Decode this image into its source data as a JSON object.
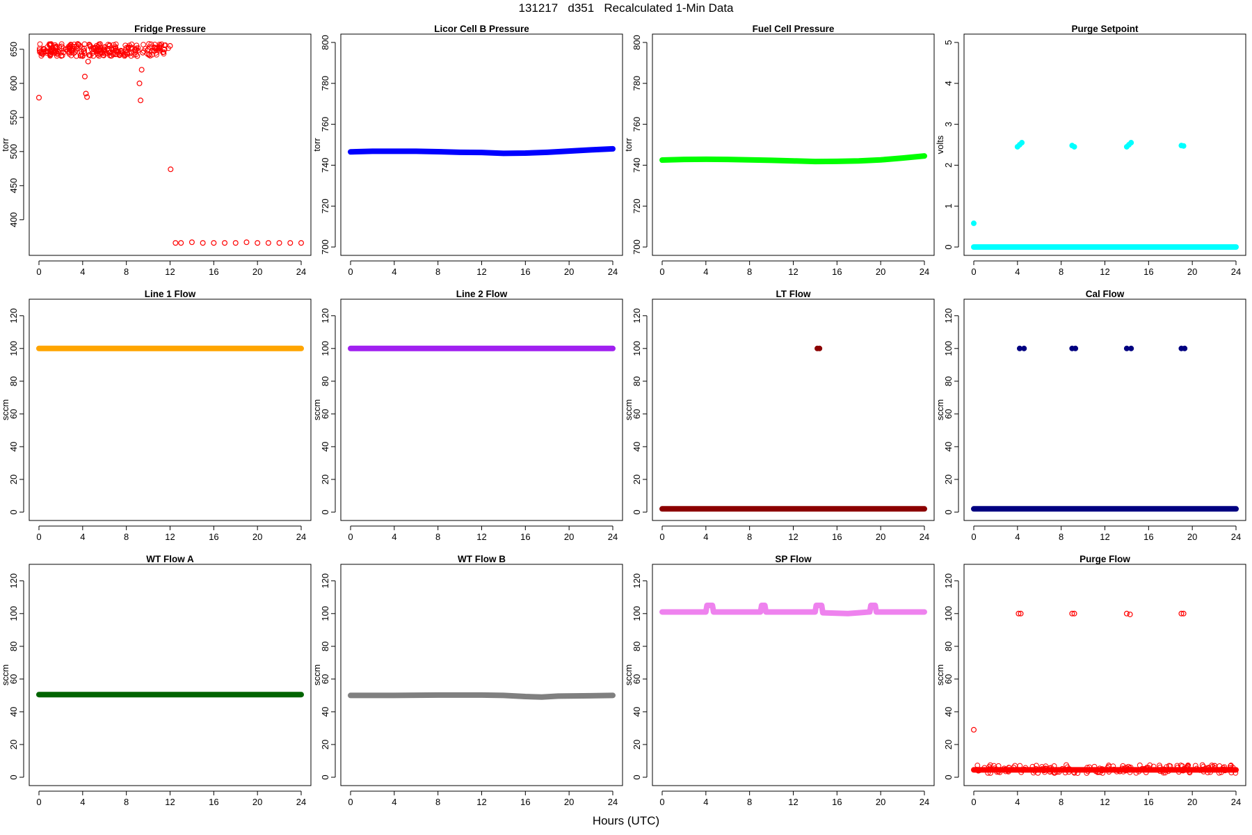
{
  "header": {
    "title": "131217   d351   Recalculated 1-Min Data",
    "xlabel": "Hours (UTC)"
  },
  "chart_data": [
    {
      "type": "scatter",
      "title": "Fridge Pressure",
      "ylabel": "torr",
      "xlim": [
        0,
        24
      ],
      "ylim": [
        360,
        660
      ],
      "xticks": [
        0,
        4,
        8,
        12,
        16,
        20,
        24
      ],
      "yticks": [
        400,
        450,
        500,
        550,
        600,
        650
      ],
      "color": "#ff0000",
      "marker": "open",
      "series": [
        {
          "x": [
            0,
            0.5,
            1,
            1.5,
            2,
            2.5,
            3,
            3.5,
            4,
            4.2,
            4.3,
            4.4,
            4.5,
            5,
            5.5,
            6,
            6.5,
            7,
            7.5,
            8,
            8.5,
            9,
            9.2,
            9.3,
            9.4,
            9.5,
            10,
            10.5,
            11,
            11.5,
            12,
            12.05,
            12.5,
            13,
            14,
            15,
            16,
            17,
            18,
            19,
            20,
            21,
            22,
            23,
            24
          ],
          "y": [
            579,
            650,
            648,
            652,
            645,
            650,
            648,
            651,
            640,
            610,
            585,
            580,
            632,
            652,
            648,
            650,
            645,
            651,
            648,
            652,
            650,
            640,
            600,
            575,
            620,
            645,
            650,
            648,
            652,
            650,
            655,
            474,
            366,
            366,
            367,
            366,
            366,
            366,
            366,
            367,
            366,
            366,
            366,
            366,
            366
          ]
        }
      ]
    },
    {
      "type": "line",
      "title": "Licor Cell B Pressure",
      "ylabel": "torr",
      "xlim": [
        0,
        24
      ],
      "ylim": [
        700,
        800
      ],
      "xticks": [
        0,
        4,
        8,
        12,
        16,
        20,
        24
      ],
      "yticks": [
        700,
        720,
        740,
        760,
        780,
        800
      ],
      "color": "#0000ff",
      "marker": "thick",
      "series": [
        {
          "x": [
            0,
            2,
            4,
            6,
            8,
            10,
            12,
            14,
            16,
            18,
            20,
            22,
            24
          ],
          "y": [
            746.5,
            746.8,
            746.8,
            746.8,
            746.6,
            746.3,
            746.2,
            745.8,
            745.9,
            746.3,
            746.9,
            747.5,
            748
          ]
        }
      ]
    },
    {
      "type": "line",
      "title": "Fuel Cell Pressure",
      "ylabel": "torr",
      "xlim": [
        0,
        24
      ],
      "ylim": [
        700,
        800
      ],
      "xticks": [
        0,
        4,
        8,
        12,
        16,
        20,
        24
      ],
      "yticks": [
        700,
        720,
        740,
        760,
        780,
        800
      ],
      "color": "#00ff00",
      "marker": "thick",
      "series": [
        {
          "x": [
            0,
            2,
            4,
            6,
            8,
            10,
            12,
            14,
            16,
            18,
            20,
            22,
            24
          ],
          "y": [
            742.5,
            742.8,
            742.9,
            742.8,
            742.6,
            742.4,
            742.1,
            741.8,
            741.9,
            742.1,
            742.6,
            743.5,
            744.5
          ]
        }
      ]
    },
    {
      "type": "scatter",
      "title": "Purge Setpoint",
      "ylabel": "volts",
      "xlim": [
        0,
        24
      ],
      "ylim": [
        0,
        5
      ],
      "xticks": [
        0,
        4,
        8,
        12,
        16,
        20,
        24
      ],
      "yticks": [
        0,
        1,
        2,
        3,
        4,
        5
      ],
      "color": "#00ffff",
      "marker": "filled",
      "series": [
        {
          "x": [
            0,
            4,
            4.2,
            4.4,
            9,
            9.2,
            14,
            14.2,
            14.4,
            19,
            19.2
          ],
          "y": [
            0.58,
            2.45,
            2.5,
            2.55,
            2.48,
            2.45,
            2.45,
            2.5,
            2.55,
            2.48,
            2.47
          ]
        },
        {
          "x": [
            0,
            24
          ],
          "y": [
            0,
            0
          ],
          "kind": "band"
        }
      ]
    },
    {
      "type": "line",
      "title": "Line 1 Flow",
      "ylabel": "sccm",
      "xlim": [
        0,
        24
      ],
      "ylim": [
        0,
        125
      ],
      "xticks": [
        0,
        4,
        8,
        12,
        16,
        20,
        24
      ],
      "yticks": [
        0,
        20,
        40,
        60,
        80,
        100,
        120
      ],
      "color": "#ffa500",
      "marker": "thick",
      "series": [
        {
          "x": [
            0,
            24
          ],
          "y": [
            100,
            100
          ]
        }
      ]
    },
    {
      "type": "line",
      "title": "Line 2 Flow",
      "ylabel": "sccm",
      "xlim": [
        0,
        24
      ],
      "ylim": [
        0,
        125
      ],
      "xticks": [
        0,
        4,
        8,
        12,
        16,
        20,
        24
      ],
      "yticks": [
        0,
        20,
        40,
        60,
        80,
        100,
        120
      ],
      "color": "#a020f0",
      "marker": "thick",
      "series": [
        {
          "x": [
            0,
            24
          ],
          "y": [
            100,
            100
          ]
        }
      ]
    },
    {
      "type": "scatter",
      "title": "LT Flow",
      "ylabel": "sccm",
      "xlim": [
        0,
        24
      ],
      "ylim": [
        0,
        125
      ],
      "xticks": [
        0,
        4,
        8,
        12,
        16,
        20,
        24
      ],
      "yticks": [
        0,
        20,
        40,
        60,
        80,
        100,
        120
      ],
      "color": "#8b0000",
      "marker": "filled",
      "series": [
        {
          "x": [
            14.2,
            14.4
          ],
          "y": [
            100,
            100
          ]
        },
        {
          "x": [
            0,
            24
          ],
          "y": [
            2,
            2
          ],
          "kind": "band"
        }
      ]
    },
    {
      "type": "scatter",
      "title": "Cal Flow",
      "ylabel": "sccm",
      "xlim": [
        0,
        24
      ],
      "ylim": [
        0,
        125
      ],
      "xticks": [
        0,
        4,
        8,
        12,
        16,
        20,
        24
      ],
      "yticks": [
        0,
        20,
        40,
        60,
        80,
        100,
        120
      ],
      "color": "#000080",
      "marker": "filled",
      "series": [
        {
          "x": [
            4.2,
            4.6,
            9,
            9.3,
            14,
            14.4,
            19,
            19.3
          ],
          "y": [
            100,
            100,
            100,
            100,
            100,
            100,
            100,
            100
          ]
        },
        {
          "x": [
            0,
            24
          ],
          "y": [
            2,
            2
          ],
          "kind": "band"
        }
      ]
    },
    {
      "type": "line",
      "title": "WT Flow A",
      "ylabel": "sccm",
      "xlim": [
        0,
        24
      ],
      "ylim": [
        0,
        125
      ],
      "xticks": [
        0,
        4,
        8,
        12,
        16,
        20,
        24
      ],
      "yticks": [
        0,
        20,
        40,
        60,
        80,
        100,
        120
      ],
      "color": "#006400",
      "marker": "thick",
      "series": [
        {
          "x": [
            0,
            24
          ],
          "y": [
            50.5,
            50.5
          ]
        }
      ]
    },
    {
      "type": "line",
      "title": "WT Flow B",
      "ylabel": "sccm",
      "xlim": [
        0,
        24
      ],
      "ylim": [
        0,
        125
      ],
      "xticks": [
        0,
        4,
        8,
        12,
        16,
        20,
        24
      ],
      "yticks": [
        0,
        20,
        40,
        60,
        80,
        100,
        120
      ],
      "color": "#808080",
      "marker": "thick",
      "series": [
        {
          "x": [
            0,
            4,
            8,
            12,
            14,
            16,
            17.5,
            19,
            22,
            24
          ],
          "y": [
            50,
            50,
            50.2,
            50.2,
            50,
            49.3,
            49,
            49.6,
            49.8,
            50
          ]
        }
      ]
    },
    {
      "type": "line",
      "title": "SP Flow",
      "ylabel": "sccm",
      "xlim": [
        0,
        24
      ],
      "ylim": [
        0,
        125
      ],
      "xticks": [
        0,
        4,
        8,
        12,
        16,
        20,
        24
      ],
      "yticks": [
        0,
        20,
        40,
        60,
        80,
        100,
        120
      ],
      "color": "#ee82ee",
      "marker": "thick",
      "series": [
        {
          "x": [
            0,
            4,
            4.1,
            4.6,
            4.7,
            9,
            9.1,
            9.4,
            9.5,
            14,
            14.1,
            14.6,
            14.7,
            17,
            18,
            19,
            19.1,
            19.5,
            19.6,
            24
          ],
          "y": [
            101,
            101,
            105,
            105,
            101,
            101,
            105,
            105,
            101,
            101,
            105,
            105,
            100.5,
            100,
            100.5,
            101,
            105,
            105,
            101,
            101
          ]
        }
      ]
    },
    {
      "type": "scatter",
      "title": "Purge Flow",
      "ylabel": "sccm",
      "xlim": [
        0,
        24
      ],
      "ylim": [
        0,
        125
      ],
      "xticks": [
        0,
        4,
        8,
        12,
        16,
        20,
        24
      ],
      "yticks": [
        0,
        20,
        40,
        60,
        80,
        100,
        120
      ],
      "color": "#ff0000",
      "marker": "open",
      "series": [
        {
          "x": [
            0,
            4.1,
            4.3,
            9,
            9.2,
            14,
            14.3,
            19,
            19.2
          ],
          "y": [
            29,
            100,
            100,
            100,
            100,
            100,
            99.5,
            100,
            100
          ]
        },
        {
          "x": [
            0,
            24
          ],
          "y": [
            4.5,
            4.5
          ],
          "kind": "band"
        }
      ]
    }
  ]
}
